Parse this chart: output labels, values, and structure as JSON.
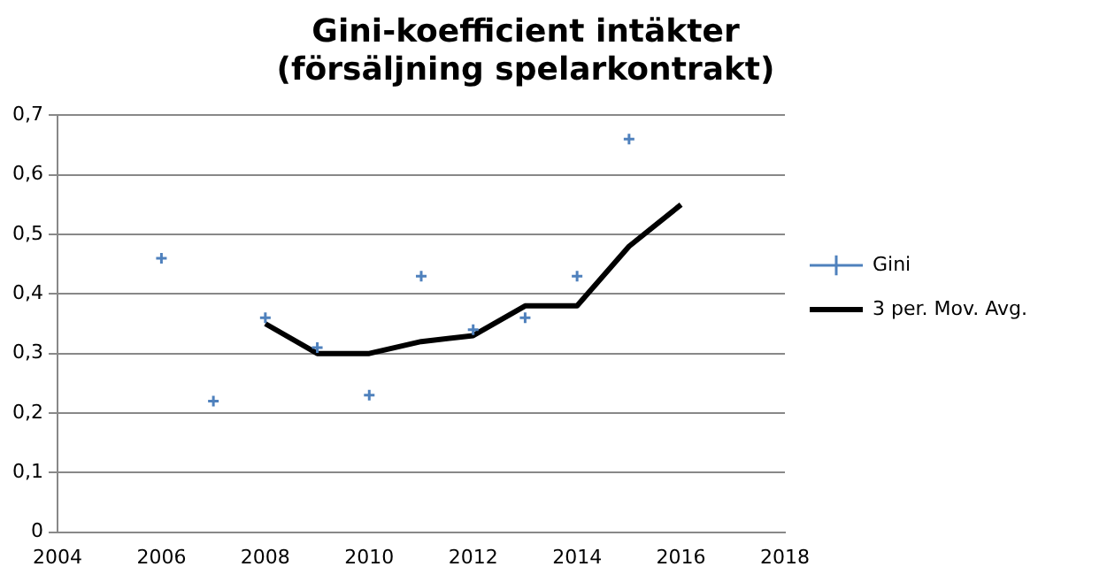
{
  "chart_data": {
    "type": "scatter",
    "title": "Gini-koefficient intäkter\n(försäljning spelarkontrakt)",
    "series": [
      {
        "name": "Gini",
        "color": "#4f81bd",
        "marker": "cross",
        "x": [
          2006,
          2007,
          2008,
          2009,
          2010,
          2011,
          2012,
          2013,
          2014,
          2015
        ],
        "values": [
          0.46,
          0.22,
          0.36,
          0.31,
          0.23,
          0.43,
          0.34,
          0.36,
          0.43,
          0.66
        ]
      },
      {
        "name": "3 per. Mov. Avg.",
        "type": "line",
        "color": "#000000",
        "marker": "none",
        "x": [
          2008,
          2009,
          2010,
          2011,
          2012,
          2013,
          2014,
          2015,
          2016
        ],
        "values": [
          0.35,
          0.3,
          0.3,
          0.32,
          0.33,
          0.38,
          0.38,
          0.48,
          0.55
        ]
      }
    ],
    "xlim": [
      2004,
      2018
    ],
    "xticks": [
      2004,
      2006,
      2008,
      2010,
      2012,
      2014,
      2016,
      2018
    ],
    "ylim": [
      0,
      0.7
    ],
    "yticks": [
      {
        "value": 0,
        "label": "0"
      },
      {
        "value": 0.1,
        "label": "0,1"
      },
      {
        "value": 0.2,
        "label": "0,2"
      },
      {
        "value": 0.3,
        "label": "0,3"
      },
      {
        "value": 0.4,
        "label": "0,4"
      },
      {
        "value": 0.5,
        "label": "0,5"
      },
      {
        "value": 0.6,
        "label": "0,6"
      },
      {
        "value": 0.7,
        "label": "0,7"
      }
    ],
    "grid": "y",
    "legend": "right"
  }
}
